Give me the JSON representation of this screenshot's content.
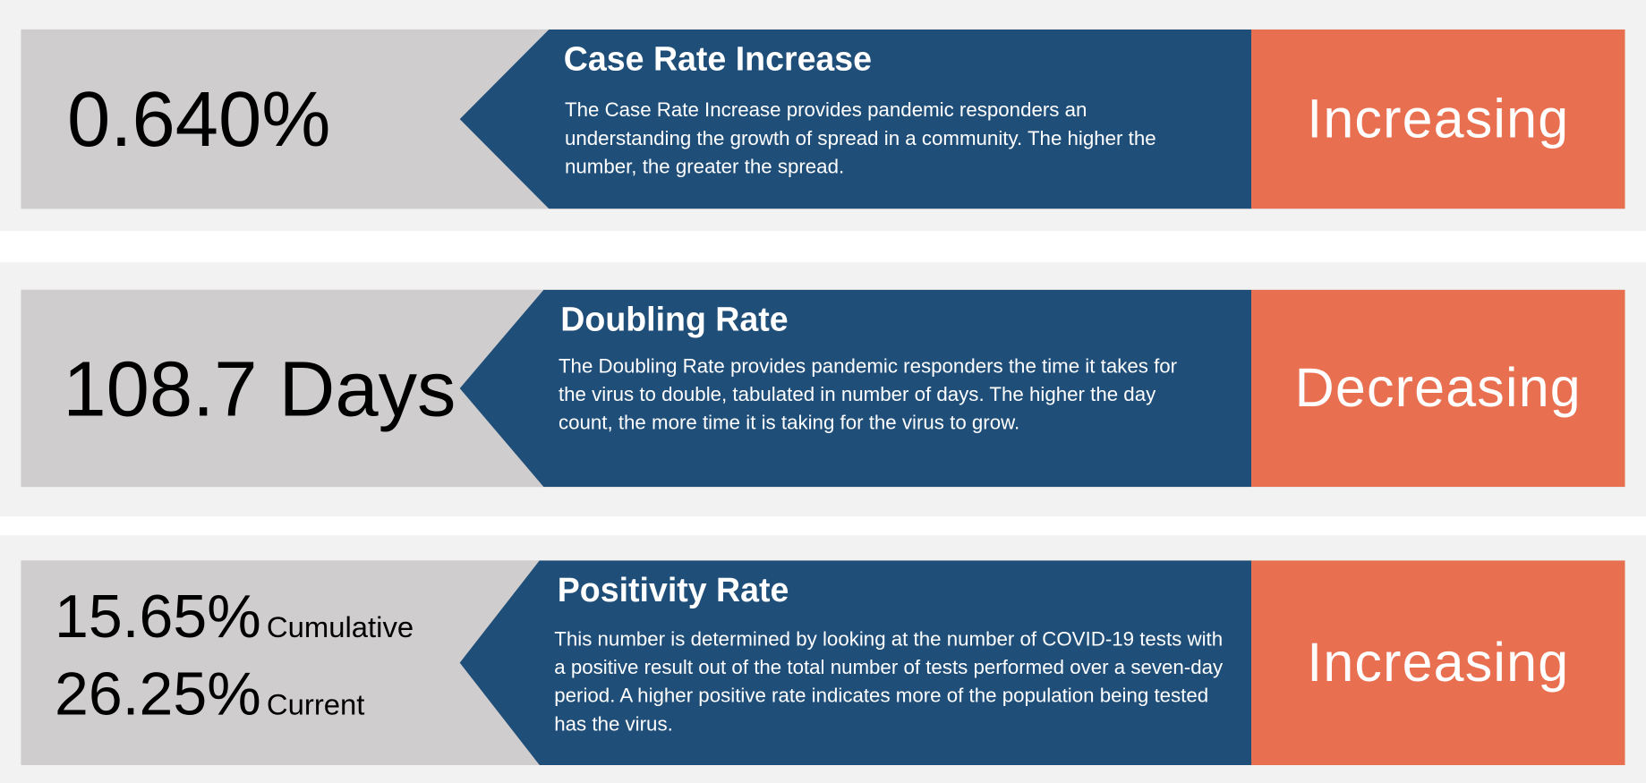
{
  "panels": [
    {
      "value": "0.640%",
      "title": "Case Rate Increase",
      "description": "The Case Rate Increase provides pandemic responders an understanding the growth of spread in a community. The higher the number, the greater the spread.",
      "status": "Increasing"
    },
    {
      "value": "108.7 Days",
      "title": "Doubling Rate",
      "description": "The Doubling Rate provides pandemic responders the time it takes for the virus to double, tabulated in number of days. The higher the day count, the more time it is taking for the virus to grow.",
      "status": "Decreasing"
    },
    {
      "values": [
        {
          "value": "15.65%",
          "label": "Cumulative"
        },
        {
          "value": "26.25%",
          "label": "Current"
        }
      ],
      "title": "Positivity Rate",
      "description": "This number is determined by looking at the number of COVID-19 tests with a positive result out of the total number of tests performed over a seven-day period. A higher positive rate indicates more of the population being tested has the virus.",
      "status": "Increasing"
    }
  ]
}
